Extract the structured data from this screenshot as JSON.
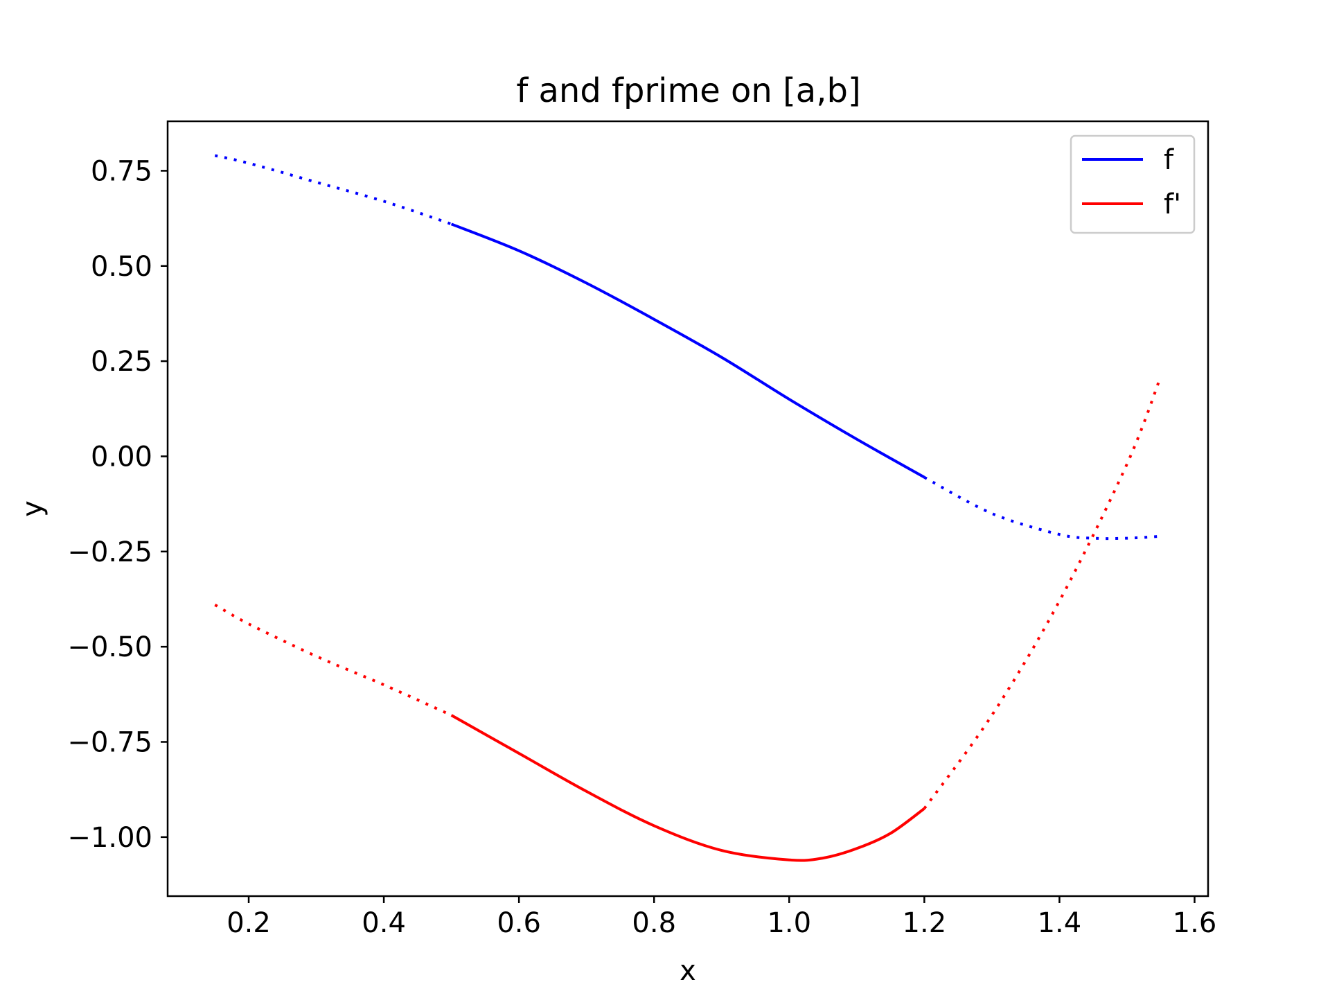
{
  "chart_data": {
    "type": "line",
    "title": "f and fprime on [a,b]",
    "xlabel": "x",
    "ylabel": "y",
    "xlim": [
      0.08,
      1.62
    ],
    "ylim": [
      -1.155,
      0.88
    ],
    "xticks": [
      0.2,
      0.4,
      0.6,
      0.8,
      1.0,
      1.2,
      1.4,
      1.6
    ],
    "xtick_labels": [
      "0.2",
      "0.4",
      "0.6",
      "0.8",
      "1.0",
      "1.2",
      "1.4",
      "1.6"
    ],
    "yticks": [
      0.75,
      0.5,
      0.25,
      0.0,
      -0.25,
      -0.5,
      -0.75,
      -1.0
    ],
    "ytick_labels": [
      "0.75",
      "0.50",
      "0.25",
      "0.00",
      "−0.25",
      "−0.50",
      "−0.75",
      "−1.00"
    ],
    "grid": false,
    "legend_position": "top-right",
    "interval": [
      0.5,
      1.2
    ],
    "series": [
      {
        "name": "f",
        "color": "#0000ff",
        "x": [
          0.15,
          0.2,
          0.3,
          0.4,
          0.5,
          0.6,
          0.7,
          0.8,
          0.9,
          1.0,
          1.1,
          1.2,
          1.3,
          1.4,
          1.45,
          1.5,
          1.55
        ],
        "y": [
          0.79,
          0.77,
          0.72,
          0.67,
          0.61,
          0.54,
          0.455,
          0.36,
          0.26,
          0.15,
          0.045,
          -0.055,
          -0.15,
          -0.205,
          -0.215,
          -0.215,
          -0.21
        ]
      },
      {
        "name": "f'",
        "color": "#ff0000",
        "x": [
          0.15,
          0.2,
          0.3,
          0.4,
          0.5,
          0.6,
          0.7,
          0.8,
          0.9,
          1.0,
          1.05,
          1.1,
          1.15,
          1.2,
          1.3,
          1.4,
          1.5,
          1.55
        ],
        "y": [
          -0.39,
          -0.44,
          -0.525,
          -0.6,
          -0.68,
          -0.78,
          -0.88,
          -0.97,
          -1.035,
          -1.06,
          -1.055,
          -1.03,
          -0.99,
          -0.925,
          -0.68,
          -0.38,
          -0.02,
          0.21
        ]
      }
    ]
  }
}
